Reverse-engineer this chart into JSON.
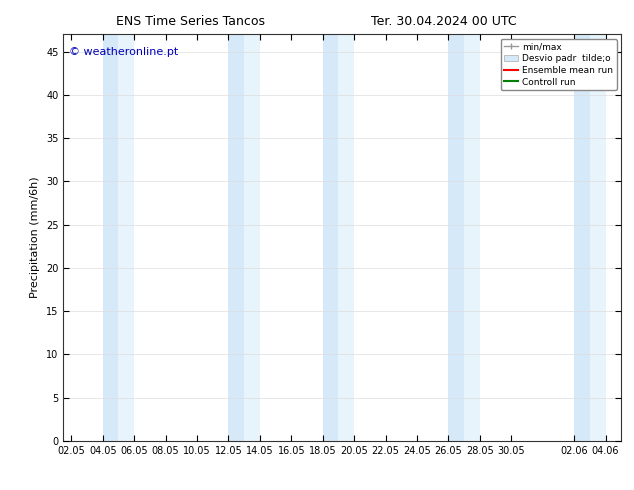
{
  "title_left": "ENS Time Series Tancos",
  "title_right": "Ter. 30.04.2024 00 UTC",
  "ylabel": "Precipitation (mm/6h)",
  "ylim": [
    0,
    47
  ],
  "yticks": [
    0,
    5,
    10,
    15,
    20,
    25,
    30,
    35,
    40,
    45
  ],
  "background_color": "#ffffff",
  "plot_background": "#ffffff",
  "watermark": "© weatheronline.pt",
  "watermark_color": "#0000bb",
  "band_color_light": "#d6e9f8",
  "band_color_lighter": "#e8f4fc",
  "x_labels": [
    "02.05",
    "04.05",
    "06.05",
    "08.05",
    "10.05",
    "12.05",
    "14.05",
    "16.05",
    "18.05",
    "20.05",
    "22.05",
    "24.05",
    "26.05",
    "28.05",
    "30.05",
    "02.06",
    "04.06"
  ],
  "x_positions": [
    0,
    2,
    4,
    6,
    8,
    10,
    12,
    14,
    16,
    18,
    20,
    22,
    24,
    26,
    28,
    32,
    34
  ],
  "xlim": [
    -0.5,
    35
  ],
  "shade_bands": [
    [
      2,
      3
    ],
    [
      3,
      4
    ],
    [
      10,
      11
    ],
    [
      11,
      12
    ],
    [
      16,
      17
    ],
    [
      17,
      18
    ],
    [
      24,
      25
    ],
    [
      25,
      26
    ],
    [
      32,
      33
    ],
    [
      33,
      34
    ]
  ],
  "legend_minmax_color": "#999999",
  "legend_std_color1": "#d6e9f8",
  "legend_std_color2": "#e8f4fc",
  "legend_mean_color": "#ff0000",
  "legend_control_color": "#008000",
  "title_fontsize": 9,
  "label_fontsize": 8,
  "tick_fontsize": 7,
  "watermark_fontsize": 8
}
